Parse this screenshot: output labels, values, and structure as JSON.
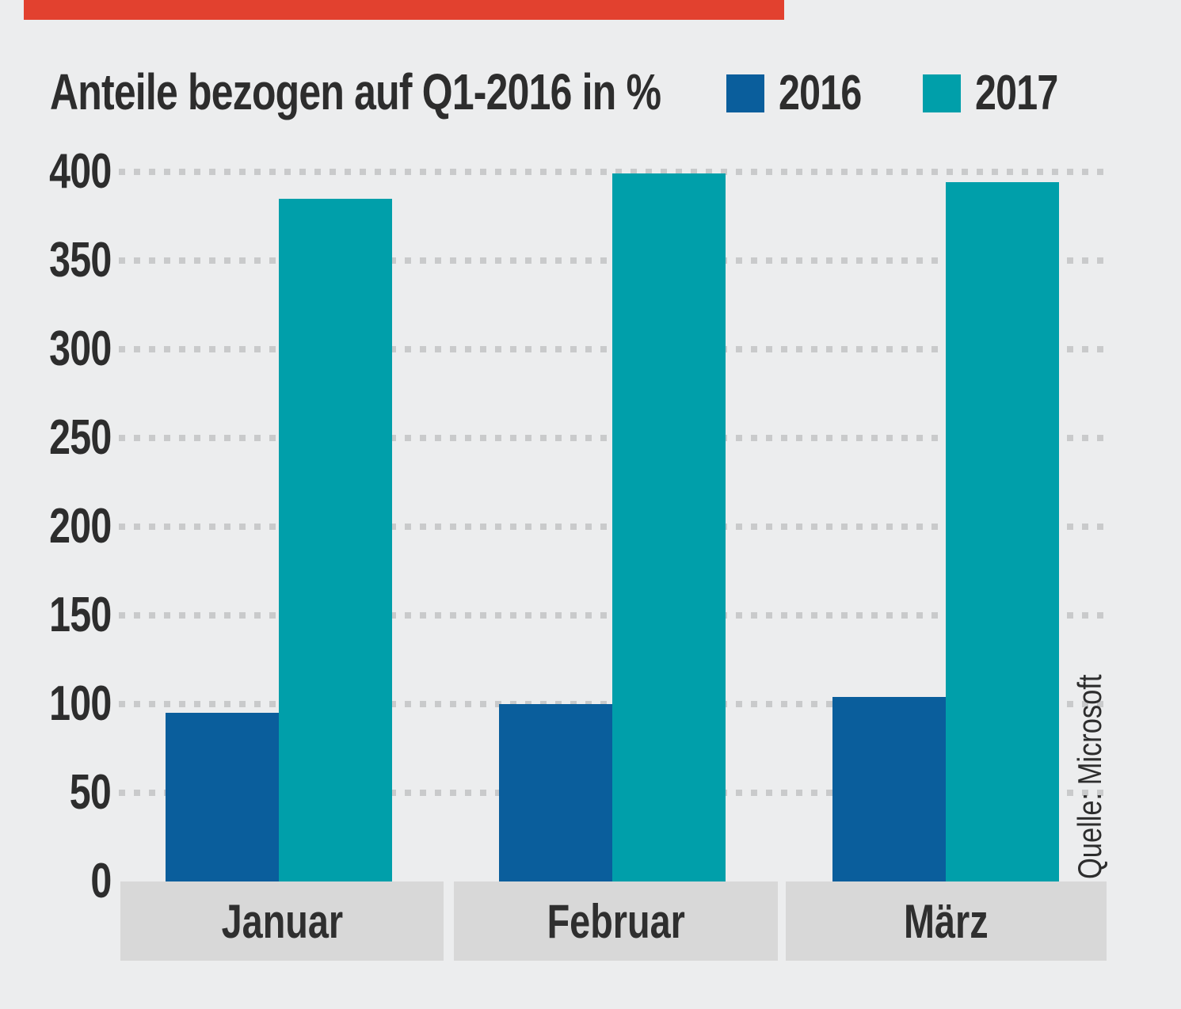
{
  "accent_bar": {
    "color": "#e2412f"
  },
  "header": {
    "title": "Anteile bezogen auf Q1-2016 in %"
  },
  "legend": [
    {
      "label": "2016",
      "color": "#0a5e9c"
    },
    {
      "label": "2017",
      "color": "#009faa"
    }
  ],
  "source": "Quelle: Microsoft",
  "colors": {
    "background": "#ecedee",
    "grid_dots": "#c9cacb",
    "band": "#d8d8d8",
    "text": "#2d2d2d"
  },
  "chart_data": {
    "type": "bar",
    "title": "Anteile bezogen auf Q1-2016 in %",
    "categories": [
      "Januar",
      "Februar",
      "März"
    ],
    "series": [
      {
        "name": "2016",
        "color": "#0a5e9c",
        "values": [
          95,
          100,
          104
        ]
      },
      {
        "name": "2017",
        "color": "#009faa",
        "values": [
          385,
          399,
          394
        ]
      }
    ],
    "xlabel": "",
    "ylabel": "",
    "ylim": [
      0,
      400
    ],
    "yticks": [
      0,
      50,
      100,
      150,
      200,
      250,
      300,
      350,
      400
    ],
    "grid": "dotted-horizontal",
    "legend_position": "top-right",
    "source": "Quelle: Microsoft"
  }
}
